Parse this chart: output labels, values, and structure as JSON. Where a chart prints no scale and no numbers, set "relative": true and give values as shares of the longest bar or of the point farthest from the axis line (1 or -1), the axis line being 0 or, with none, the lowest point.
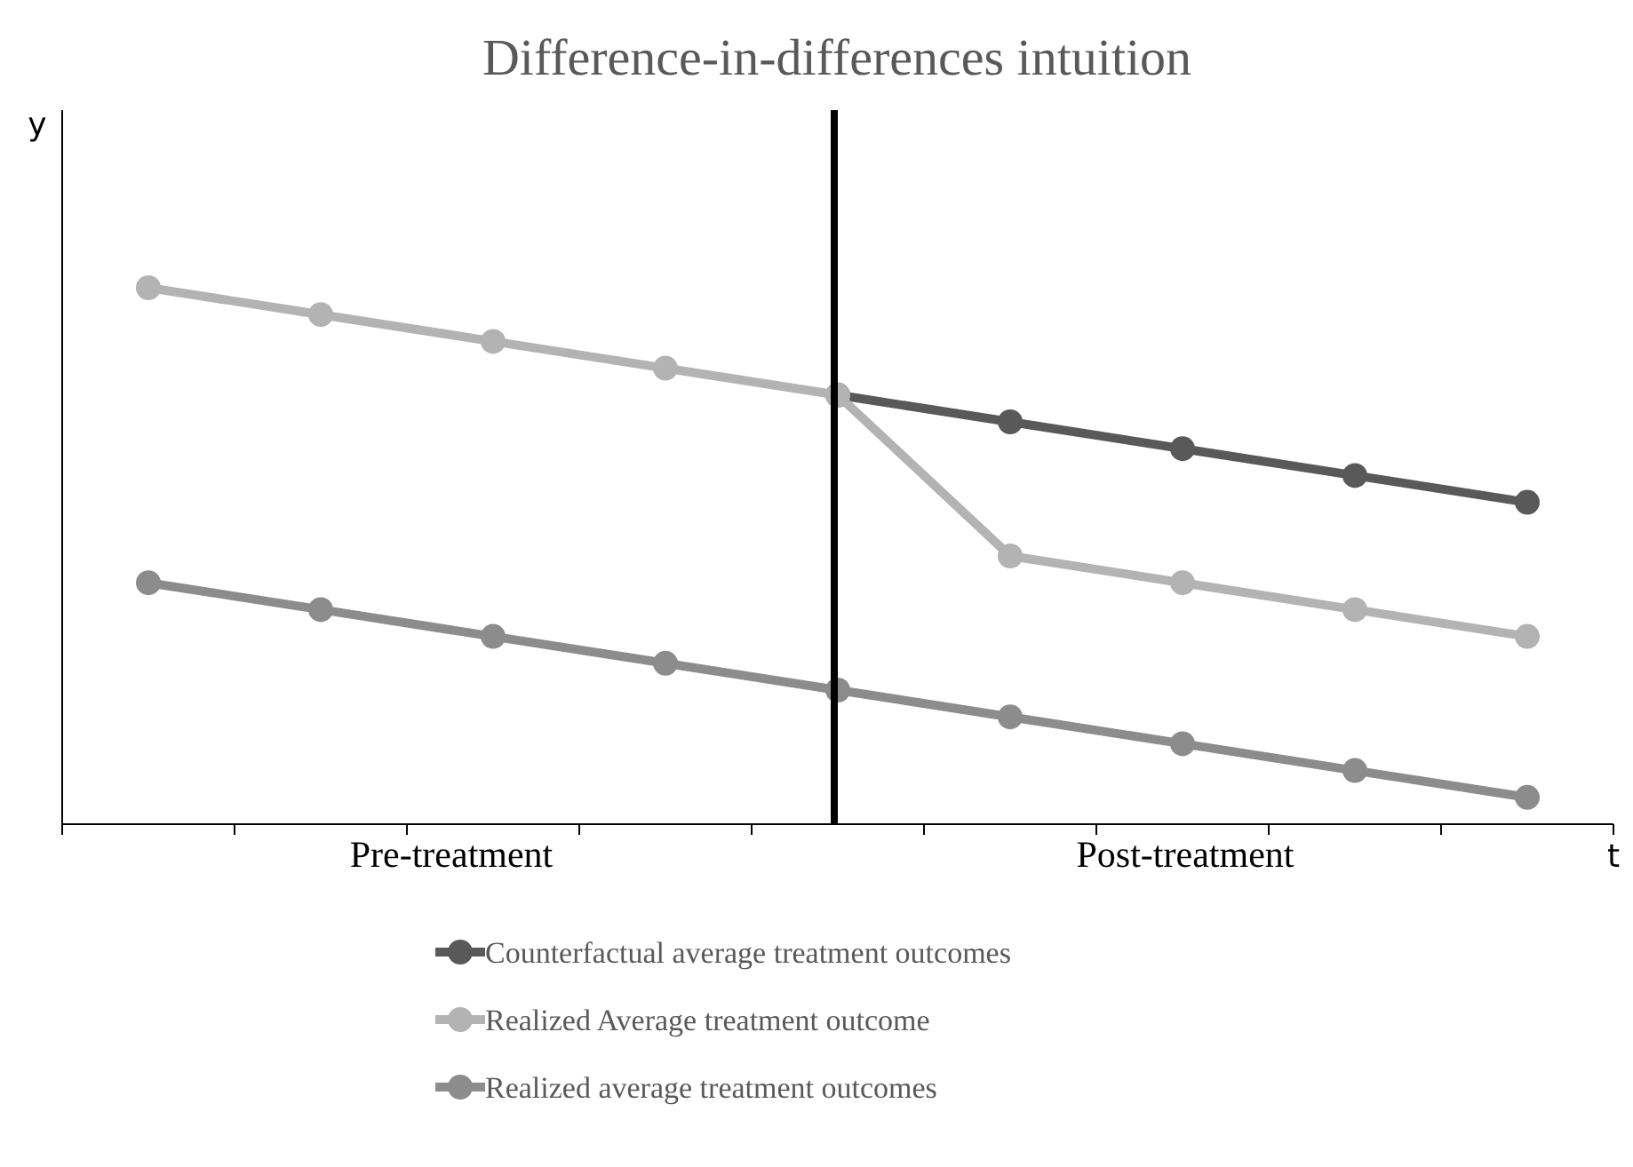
{
  "chart_data": {
    "type": "line",
    "title": "Difference-in-differences intuition",
    "xlabel": "t",
    "ylabel": "y",
    "relative": true,
    "categories": [
      null,
      null,
      null,
      null,
      null,
      null,
      null,
      null,
      null
    ],
    "series": [
      {
        "name": "Counterfactual average treatment outcomes",
        "color": "#595959",
        "values": [
          null,
          null,
          null,
          null,
          0.8,
          0.75,
          0.7,
          0.65,
          0.6
        ]
      },
      {
        "name": "Realized Average treatment outcome",
        "color": "#b3b3b3",
        "values": [
          1,
          0.95,
          0.9,
          0.85,
          0.8,
          0.5,
          0.45,
          0.4,
          0.35
        ]
      },
      {
        "name": "Realized average treatment outcomes",
        "color": "#8c8c8c",
        "values": [
          0.45,
          0.4,
          0.35,
          0.3,
          0.25,
          0.2,
          0.15,
          0.1,
          0.05
        ]
      }
    ],
    "annotations": [
      "Pre-treatment",
      "Post-treatment"
    ],
    "marker": "circle",
    "legend": "bottom",
    "grid": false
  }
}
